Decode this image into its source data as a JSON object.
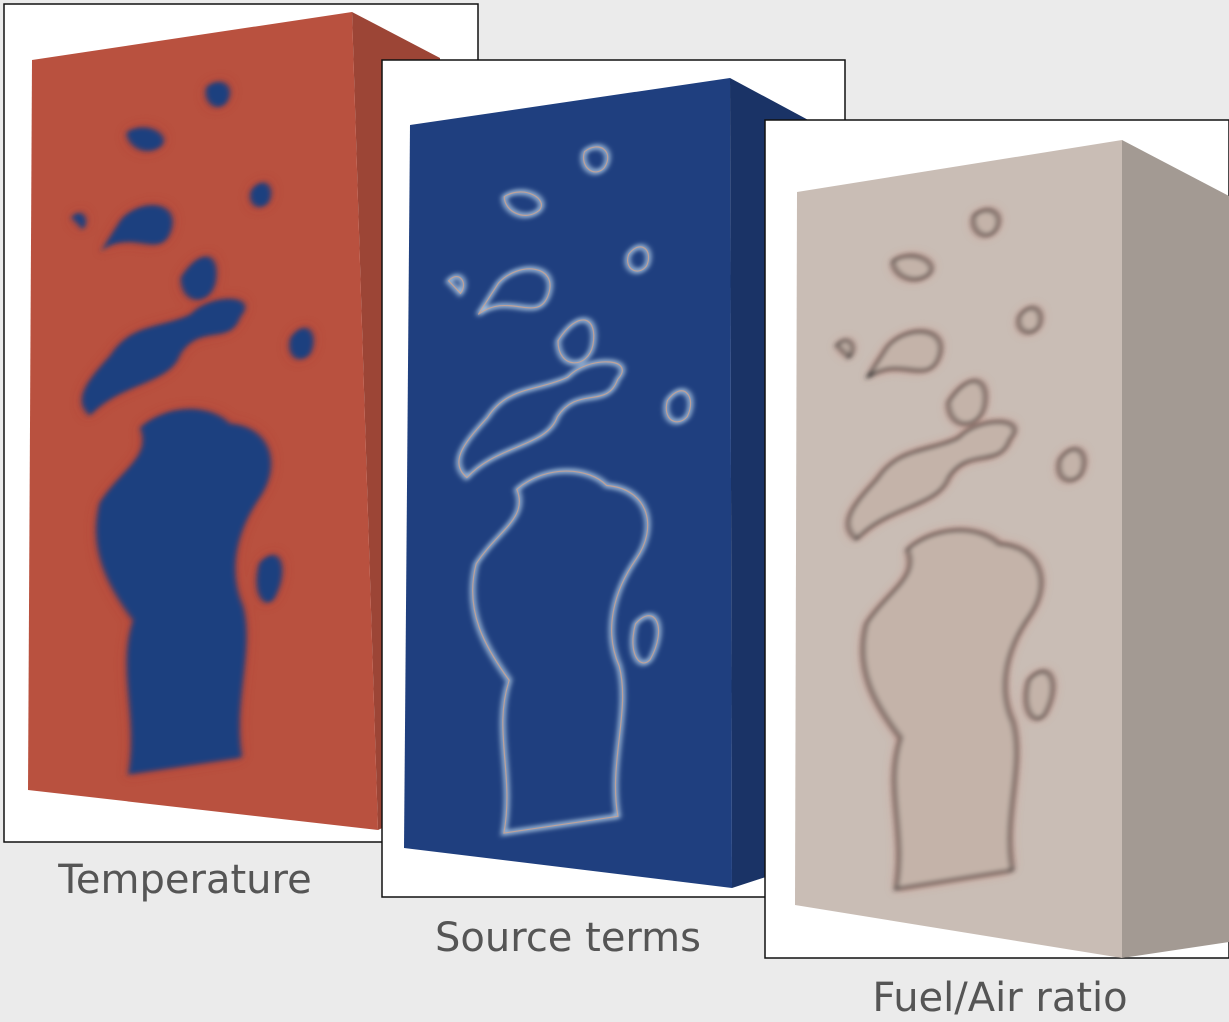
{
  "panels": [
    {
      "label": "Temperature"
    },
    {
      "label": "Source terms"
    },
    {
      "label": "Fuel/Air ratio"
    }
  ]
}
